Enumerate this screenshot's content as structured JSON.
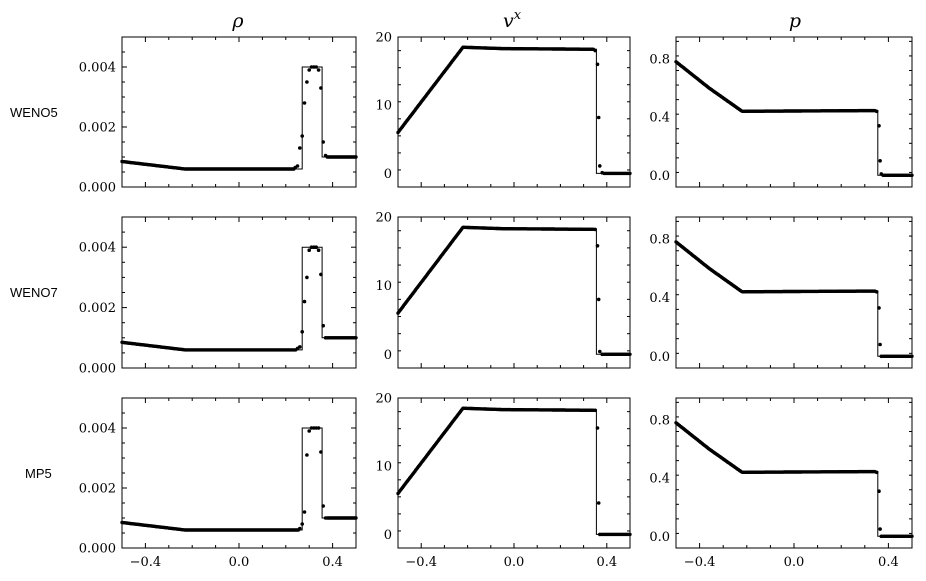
{
  "column_titles": [
    "ρ",
    "v",
    "p"
  ],
  "column_title_superscripts": [
    "",
    "x",
    ""
  ],
  "row_labels": [
    "WENO5",
    "WENO7",
    "MP5"
  ],
  "chart_data": {
    "type": "scatter",
    "layout": "3x3 grid of panels; rows = numerical schemes, columns = primitive variables",
    "rows": [
      "WENO5",
      "WENO7",
      "MP5"
    ],
    "columns": [
      "ρ",
      "v^x",
      "p"
    ],
    "shared_x": {
      "xlim": [
        -0.5,
        0.5
      ],
      "xticks": [
        -0.4,
        0.0,
        0.4
      ],
      "xtick_labels": [
        "−0.4",
        "0.0",
        "0.4"
      ]
    },
    "marker_color": "#000000",
    "line_color": "#000000",
    "variables": [
      {
        "name": "ρ",
        "ylim": [
          0.0,
          0.005
        ],
        "yticks": [
          0.0,
          0.002,
          0.004
        ],
        "ytick_labels": [
          "0.000",
          "0.002",
          "0.004"
        ],
        "exact_solution": [
          [
            -0.5,
            0.00085
          ],
          [
            -0.23,
            0.0006
          ],
          [
            0.27,
            0.0006
          ],
          [
            0.27,
            0.004
          ],
          [
            0.355,
            0.004
          ],
          [
            0.355,
            0.001
          ],
          [
            0.5,
            0.001
          ]
        ],
        "notes": "rarefaction fan, contact at ~0.27, shock at ~0.355"
      },
      {
        "name": "v^x",
        "ylim": [
          -2,
          20
        ],
        "yticks": [
          0,
          10,
          20
        ],
        "ytick_labels": [
          "0",
          "10",
          "20"
        ],
        "exact_solution": [
          [
            -0.5,
            6.0
          ],
          [
            -0.22,
            18.5
          ],
          [
            -0.05,
            18.3
          ],
          [
            0.355,
            18.2
          ],
          [
            0.355,
            0.0
          ],
          [
            0.5,
            0.0
          ]
        ]
      },
      {
        "name": "p",
        "ylim": [
          -0.08,
          0.95
        ],
        "yticks": [
          0.0,
          0.4,
          0.8
        ],
        "ytick_labels": [
          "0.0",
          "0.4",
          "0.8"
        ],
        "exact_solution": [
          [
            -0.5,
            0.78
          ],
          [
            -0.36,
            0.6
          ],
          [
            -0.22,
            0.44
          ],
          [
            0.355,
            0.445
          ],
          [
            0.355,
            0.0
          ],
          [
            0.5,
            0.0
          ]
        ]
      }
    ],
    "numerical_points_near_discontinuity": {
      "WENO5": {
        "ρ": [
          [
            0.24,
            0.00065
          ],
          [
            0.25,
            0.0007
          ],
          [
            0.26,
            0.0013
          ],
          [
            0.27,
            0.0017
          ],
          [
            0.28,
            0.0028
          ],
          [
            0.29,
            0.0035
          ],
          [
            0.3,
            0.0039
          ],
          [
            0.31,
            0.004
          ],
          [
            0.32,
            0.004
          ],
          [
            0.33,
            0.004
          ],
          [
            0.34,
            0.0039
          ],
          [
            0.35,
            0.0033
          ],
          [
            0.36,
            0.0015
          ],
          [
            0.37,
            0.00105
          ]
        ],
        "v^x": [
          [
            0.35,
            18.0
          ],
          [
            0.36,
            16.0
          ],
          [
            0.365,
            8.2
          ],
          [
            0.37,
            1.1
          ],
          [
            0.38,
            0.1
          ]
        ],
        "p": [
          [
            0.35,
            0.44
          ],
          [
            0.36,
            0.34
          ],
          [
            0.365,
            0.1
          ],
          [
            0.37,
            0.01
          ]
        ]
      },
      "WENO7": {
        "ρ": [
          [
            0.25,
            0.00065
          ],
          [
            0.26,
            0.0007
          ],
          [
            0.27,
            0.0012
          ],
          [
            0.28,
            0.0022
          ],
          [
            0.29,
            0.003
          ],
          [
            0.3,
            0.0039
          ],
          [
            0.31,
            0.004
          ],
          [
            0.32,
            0.004
          ],
          [
            0.33,
            0.004
          ],
          [
            0.34,
            0.0039
          ],
          [
            0.35,
            0.0031
          ],
          [
            0.36,
            0.0014
          ],
          [
            0.37,
            0.001
          ]
        ],
        "v^x": [
          [
            0.35,
            18.2
          ],
          [
            0.36,
            15.8
          ],
          [
            0.365,
            8.0
          ],
          [
            0.37,
            0.4
          ],
          [
            0.38,
            0.0
          ]
        ],
        "p": [
          [
            0.35,
            0.44
          ],
          [
            0.36,
            0.33
          ],
          [
            0.365,
            0.08
          ],
          [
            0.37,
            0.0
          ]
        ]
      },
      "MP5": {
        "ρ": [
          [
            0.26,
            0.00065
          ],
          [
            0.27,
            0.0008
          ],
          [
            0.28,
            0.0012
          ],
          [
            0.29,
            0.0031
          ],
          [
            0.3,
            0.0039
          ],
          [
            0.31,
            0.004
          ],
          [
            0.32,
            0.004
          ],
          [
            0.33,
            0.004
          ],
          [
            0.34,
            0.004
          ],
          [
            0.35,
            0.0032
          ],
          [
            0.36,
            0.0014
          ],
          [
            0.37,
            0.001
          ]
        ],
        "v^x": [
          [
            0.35,
            18.2
          ],
          [
            0.36,
            15.6
          ],
          [
            0.365,
            4.6
          ],
          [
            0.37,
            0.0
          ]
        ],
        "p": [
          [
            0.35,
            0.44
          ],
          [
            0.36,
            0.31
          ],
          [
            0.365,
            0.05
          ],
          [
            0.37,
            0.0
          ]
        ]
      }
    }
  }
}
